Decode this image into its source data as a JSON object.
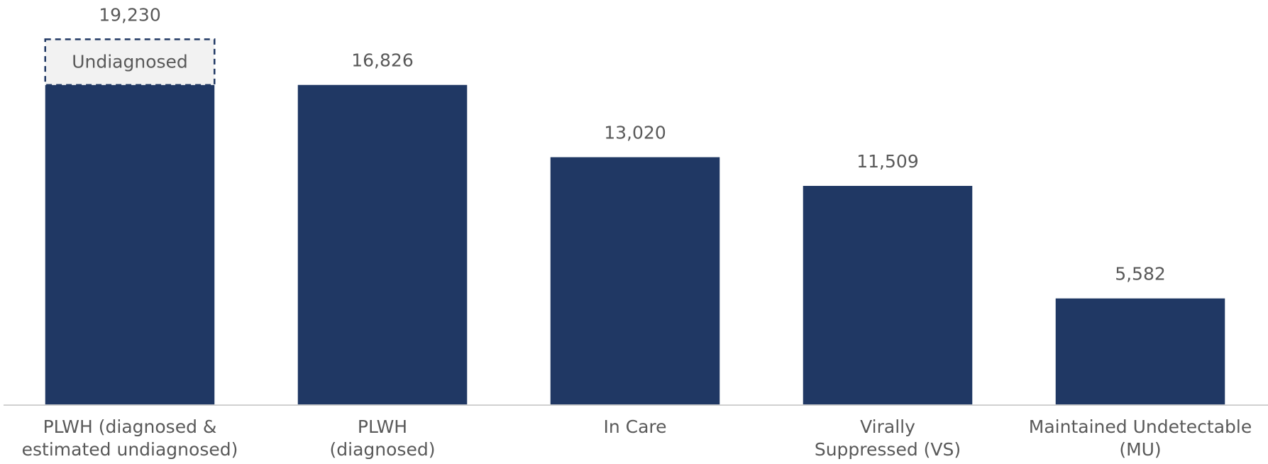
{
  "chart_data": {
    "type": "bar",
    "categories": [
      "PLWH (diagnosed &\nestimated undiagnosed)",
      "PLWH\n(diagnosed)",
      "In Care",
      "Virally\nSuppressed (VS)",
      "Maintained Undetectable\n(MU)"
    ],
    "values": [
      19230,
      16826,
      13020,
      11509,
      5582
    ],
    "value_labels": [
      "19,230",
      "16,826",
      "13,020",
      "11,509",
      "5,582"
    ],
    "color": "#203864",
    "overlay": {
      "label": "Undiagnosed",
      "category": 0,
      "base_category": 1,
      "fill": "#f2f2f2"
    },
    "ylim": [
      0,
      21000
    ]
  }
}
